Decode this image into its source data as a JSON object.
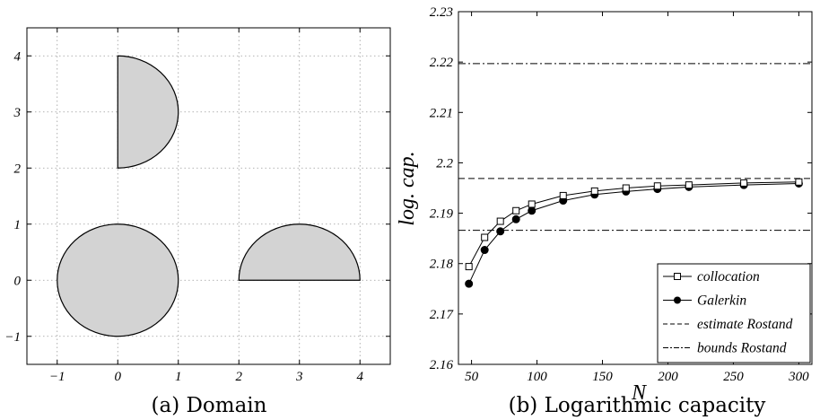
{
  "chart_data": [
    {
      "type": "scatter",
      "caption": "(a) Domain",
      "xlim": [
        -1.5,
        4.5
      ],
      "ylim": [
        -1.5,
        4.5
      ],
      "xticks": [
        -1,
        0,
        1,
        2,
        3,
        4
      ],
      "yticks": [
        -1,
        0,
        1,
        2,
        3,
        4
      ],
      "xtick_labels": [
        "−1",
        "0",
        "1",
        "2",
        "3",
        "4"
      ],
      "ytick_labels": [
        "−1",
        "0",
        "1",
        "2",
        "3",
        "4"
      ],
      "grid": true,
      "fill_color": "#d3d3d3",
      "shapes": [
        {
          "kind": "disk",
          "center": [
            0,
            0
          ],
          "radius": 1
        },
        {
          "kind": "half-disk",
          "center": [
            0,
            3
          ],
          "radius": 1,
          "side": "right"
        },
        {
          "kind": "half-disk",
          "center": [
            3,
            0
          ],
          "radius": 1,
          "side": "top"
        }
      ]
    },
    {
      "type": "line",
      "caption": "(b) Logarithmic capacity",
      "xlabel": "N",
      "ylabel": "log. cap.",
      "xlim": [
        40,
        310
      ],
      "ylim": [
        2.16,
        2.23
      ],
      "xticks": [
        50,
        100,
        150,
        200,
        250,
        300
      ],
      "yticks": [
        2.16,
        2.17,
        2.18,
        2.19,
        2.2,
        2.21,
        2.22,
        2.23
      ],
      "xtick_labels": [
        "50",
        "100",
        "150",
        "200",
        "250",
        "300"
      ],
      "ytick_labels": [
        "2.16",
        "2.17",
        "2.18",
        "2.19",
        "2.2",
        "2.21",
        "2.22",
        "2.23"
      ],
      "grid": false,
      "legend_position": "bottom-right",
      "x": [
        48,
        60,
        72,
        84,
        96,
        120,
        144,
        168,
        192,
        216,
        258,
        300
      ],
      "series": [
        {
          "name": "collocation",
          "style": "solid-open-square",
          "values": [
            2.1794,
            2.1852,
            2.1884,
            2.1905,
            2.1918,
            2.1935,
            2.1944,
            2.195,
            2.1954,
            2.1956,
            2.196,
            2.1962
          ]
        },
        {
          "name": "Galerkin",
          "style": "solid-filled-circle",
          "values": [
            2.176,
            2.1827,
            2.1864,
            2.1888,
            2.1905,
            2.1925,
            2.1937,
            2.1943,
            2.1948,
            2.1952,
            2.1956,
            2.1959
          ]
        },
        {
          "name": "estimate Rostand",
          "style": "dashed",
          "constant": 2.1969
        },
        {
          "name": "bounds Rostand",
          "style": "dash-dot",
          "constants": [
            2.1866,
            2.2197
          ]
        }
      ]
    }
  ]
}
